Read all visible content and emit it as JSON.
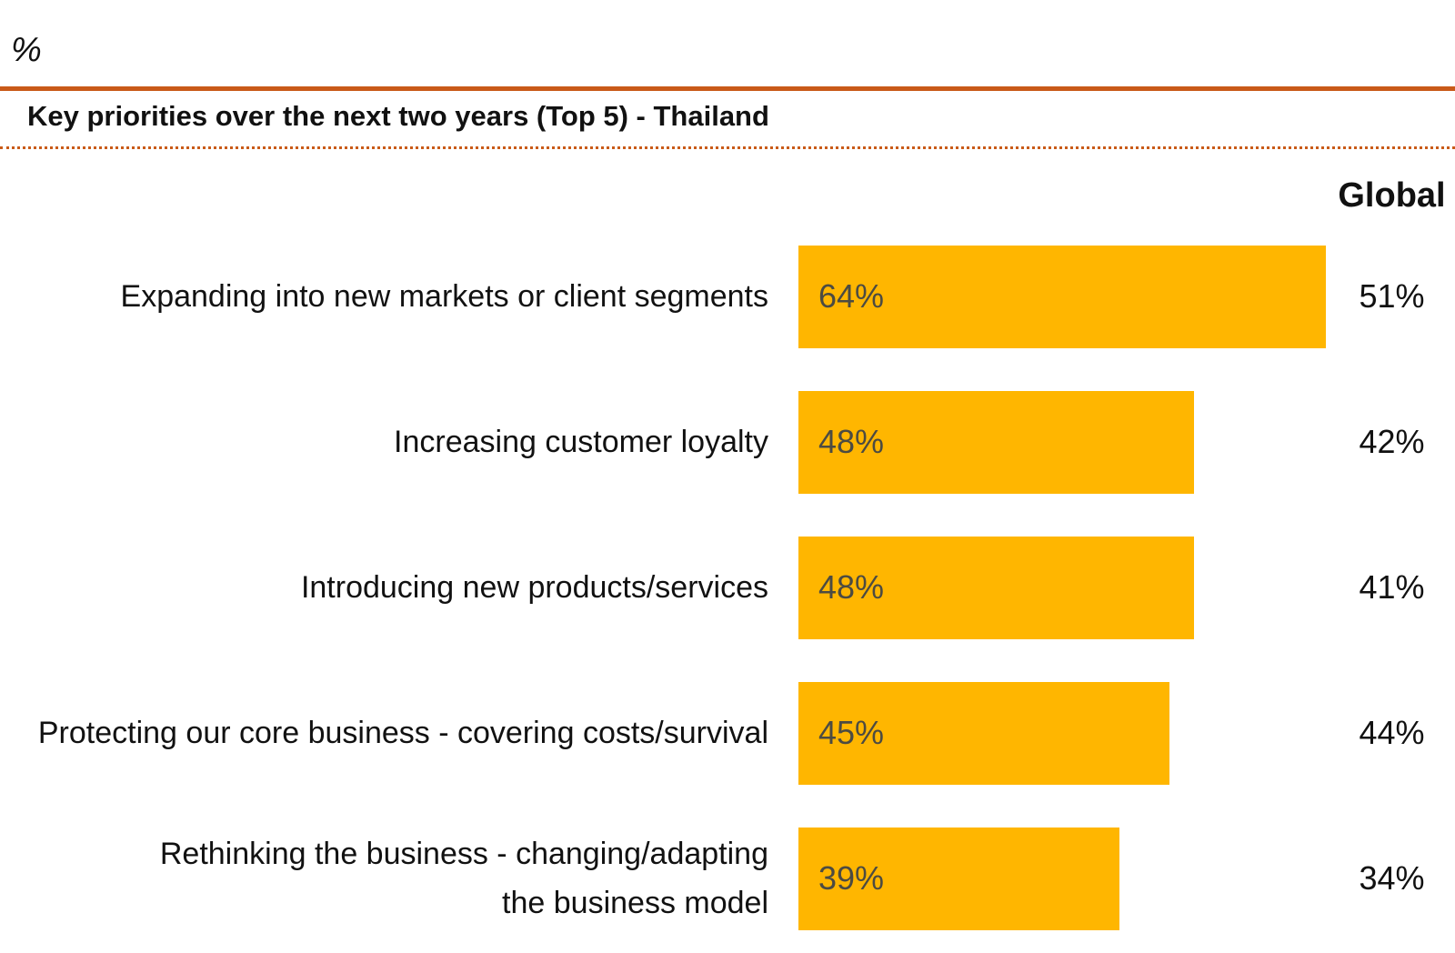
{
  "page": {
    "unit_label": "%",
    "title": "Key priorities over the next two years (Top 5) - Thailand",
    "global_header": "Global"
  },
  "chart_data": {
    "type": "bar",
    "orientation": "horizontal",
    "title": "Key priorities over the next two years (Top 5) - Thailand",
    "unit": "%",
    "categories": [
      "Expanding into new markets or client segments",
      "Increasing customer loyalty",
      "Introducing new products/services",
      "Protecting our core business - covering costs/survival",
      "Rethinking the business - changing/adapting\nthe business model"
    ],
    "series": [
      {
        "name": "Thailand",
        "values": [
          64,
          48,
          48,
          45,
          39
        ]
      },
      {
        "name": "Global",
        "values": [
          51,
          42,
          41,
          44,
          34
        ]
      }
    ],
    "value_suffix": "%",
    "bar_color": "#ffb600",
    "bar_value_color": "#4c4b42",
    "rule_color": "#c95a18",
    "layout_hints": {
      "gridlines": false,
      "x_axis_visible": false,
      "legend": "none",
      "global_values_position": "right-column"
    }
  }
}
